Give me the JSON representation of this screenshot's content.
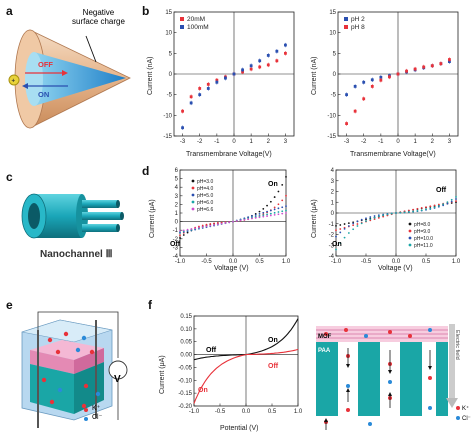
{
  "panels": {
    "a": {
      "label": "a",
      "annotation": "Negative\nsurface charge",
      "off_label": "OFF",
      "on_label": "ON"
    },
    "b": {
      "label": "b",
      "left": {
        "legend": [
          "20mM",
          "100mM"
        ],
        "ylabel": "Current (nA)",
        "xlabel": "Transmembrane Voltage(V)"
      },
      "right": {
        "legend": [
          "pH 2",
          "pH 8"
        ],
        "ylabel": "Current (nA)",
        "xlabel": "Transmembrane Voltage(V)"
      }
    },
    "c": {
      "label": "c",
      "caption": "Nanochannel Ⅲ"
    },
    "d": {
      "label": "d",
      "left": {
        "legend": [
          "pH=3.0",
          "pH=4.0",
          "pH=5.0",
          "pH=6.0",
          "pH=6.6"
        ],
        "ylabel": "Current (μA)",
        "xlabel": "Voltage (V)",
        "on_label": "On",
        "off_label": "Off"
      },
      "right": {
        "legend": [
          "pH=8.0",
          "pH=9.0",
          "pH=10.0",
          "pH=11.0"
        ],
        "ylabel": "Current (μA)",
        "xlabel": "Voltage (V)",
        "on_label": "On",
        "off_label": "Off"
      }
    },
    "e": {
      "label": "e",
      "legend": [
        "K⁺",
        "Cl⁻"
      ],
      "meter": "V"
    },
    "f": {
      "label": "f",
      "ylabel": "Current (μA)",
      "xlabel": "Potential (V)",
      "on_labels": [
        "On",
        "On"
      ],
      "off_labels": [
        "Off",
        "Off"
      ],
      "schematic": {
        "mof": "MOF",
        "paa": "PAA",
        "field": "Electric field",
        "legend": [
          "K⁺",
          "Cl⁻"
        ]
      }
    }
  },
  "colors": {
    "red": "#e8323a",
    "blue": "#2a4fb0",
    "teal": "#1aa6a6",
    "pink": "#f2a8c8"
  },
  "chart_data": [
    {
      "id": "b-left",
      "type": "scatter",
      "x": [
        -3,
        -2.5,
        -2,
        -1.5,
        -1,
        -0.5,
        0,
        0.5,
        1,
        1.5,
        2,
        2.5,
        3
      ],
      "xlim": [
        -3.5,
        3.5
      ],
      "ylim": [
        -15,
        15
      ],
      "xticks": [
        -3,
        -2,
        -1,
        0,
        1,
        2,
        3
      ],
      "yticks": [
        -15,
        -10,
        -5,
        0,
        5,
        10,
        15
      ],
      "series": [
        {
          "name": "20mM",
          "color": "#e8323a",
          "values": [
            -9,
            -5.5,
            -3.5,
            -2.5,
            -1.5,
            -0.7,
            0,
            0.5,
            1.2,
            1.7,
            2.2,
            3.2,
            5
          ]
        },
        {
          "name": "100mM",
          "color": "#2a4fb0",
          "values": [
            -13,
            -7,
            -5,
            -3.5,
            -2,
            -1,
            0,
            1,
            2,
            3.2,
            4.5,
            5.5,
            7
          ]
        }
      ]
    },
    {
      "id": "b-right",
      "type": "scatter",
      "x": [
        -3,
        -2.5,
        -2,
        -1.5,
        -1,
        -0.5,
        0,
        0.5,
        1,
        1.5,
        2,
        2.5,
        3
      ],
      "xlim": [
        -3.5,
        3.5
      ],
      "ylim": [
        -15,
        15
      ],
      "xticks": [
        -3,
        -2,
        -1,
        0,
        1,
        2,
        3
      ],
      "yticks": [
        -15,
        -10,
        -5,
        0,
        5,
        10,
        15
      ],
      "series": [
        {
          "name": "pH 2",
          "color": "#2a4fb0",
          "values": [
            -5,
            -3,
            -2,
            -1.4,
            -0.8,
            -0.4,
            0,
            0.5,
            1,
            1.5,
            2,
            2.5,
            3
          ]
        },
        {
          "name": "pH 8",
          "color": "#e8323a",
          "values": [
            -12,
            -9,
            -6,
            -3,
            -1.5,
            -0.7,
            0,
            0.7,
            1.2,
            1.7,
            2,
            2.5,
            3.5
          ]
        }
      ]
    },
    {
      "id": "d-left",
      "type": "scatter",
      "xlim": [
        -1,
        1
      ],
      "ylim": [
        -4,
        6
      ],
      "xticks": [
        -1.0,
        -0.5,
        0.0,
        0.5,
        1.0
      ],
      "yticks": [
        -4.0,
        -3.0,
        -2.0,
        -1.0,
        0.0,
        1.0,
        2.0,
        3.0,
        4.0,
        5.0,
        6.0
      ],
      "series": [
        {
          "name": "pH=3.0",
          "color": "#111111",
          "kind": "expo",
          "neg": -1.9,
          "pos": 5.2
        },
        {
          "name": "pH=4.0",
          "color": "#e8323a",
          "kind": "expo",
          "neg": -1.6,
          "pos": 3.0
        },
        {
          "name": "pH=5.0",
          "color": "#2a4fb0",
          "kind": "lin",
          "neg": -1.3,
          "pos": 1.8
        },
        {
          "name": "pH=6.0",
          "color": "#1aa6a6",
          "kind": "lin",
          "neg": -1.2,
          "pos": 1.3
        },
        {
          "name": "pH=6.6",
          "color": "#d04fd0",
          "kind": "lin",
          "neg": -1.1,
          "pos": 1.0
        }
      ]
    },
    {
      "id": "d-right",
      "type": "scatter",
      "xlim": [
        -1,
        1
      ],
      "ylim": [
        -4,
        4
      ],
      "xticks": [
        -1.0,
        -0.5,
        0.0,
        0.5,
        1.0
      ],
      "yticks": [
        -4,
        -3,
        -2,
        -1,
        0,
        1,
        2,
        3,
        4
      ],
      "series": [
        {
          "name": "pH=8.0",
          "color": "#111111",
          "kind": "lin",
          "neg": -1.2,
          "pos": 1.0
        },
        {
          "name": "pH=9.0",
          "color": "#e8323a",
          "kind": "lin",
          "neg": -1.6,
          "pos": 1.1
        },
        {
          "name": "pH=10.0",
          "color": "#2a4fb0",
          "kind": "expo",
          "neg": -2.2,
          "pos": 1.3
        },
        {
          "name": "pH=11.0",
          "color": "#1aa6a6",
          "kind": "expo",
          "neg": -3.4,
          "pos": 1.5
        }
      ]
    },
    {
      "id": "f",
      "type": "line",
      "xlim": [
        -1,
        1
      ],
      "ylim": [
        -0.2,
        0.15
      ],
      "xticks": [
        -1.0,
        -0.5,
        0.0,
        0.5,
        1.0
      ],
      "yticks": [
        -0.2,
        -0.15,
        -0.1,
        -0.05,
        0.0,
        0.05,
        0.1,
        0.15
      ],
      "series": [
        {
          "name": "black",
          "color": "#111111",
          "kind": "expo",
          "neg": -0.02,
          "pos": 0.14
        },
        {
          "name": "red",
          "color": "#e8323a",
          "kind": "expo",
          "neg": -0.19,
          "pos": 0.02
        }
      ]
    }
  ]
}
